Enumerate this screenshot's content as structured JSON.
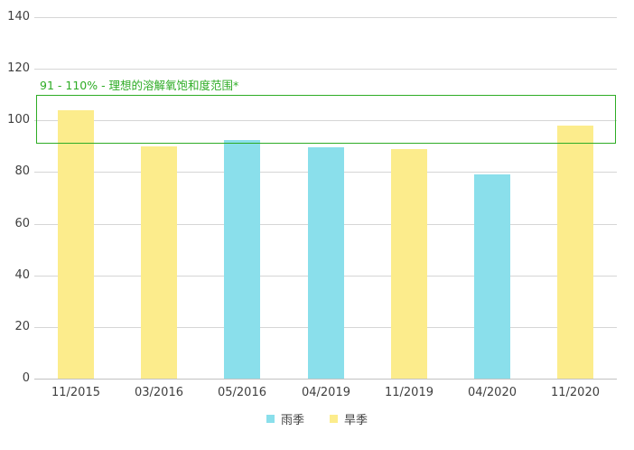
{
  "chart_data": {
    "type": "bar",
    "title": "",
    "xlabel": "",
    "ylabel": "",
    "ylim": [
      0,
      140
    ],
    "ytick_step": 20,
    "ytick_labels": [
      "0",
      "20",
      "40",
      "60",
      "80",
      "100",
      "120",
      "140"
    ],
    "grid": true,
    "categories": [
      "11/2015",
      "03/2016",
      "05/2016",
      "04/2019",
      "11/2019",
      "04/2020",
      "11/2020"
    ],
    "bars": [
      {
        "category": "11/2015",
        "value": 104,
        "series": "旱季"
      },
      {
        "category": "03/2016",
        "value": 90,
        "series": "旱季"
      },
      {
        "category": "05/2016",
        "value": 92.5,
        "series": "雨季"
      },
      {
        "category": "04/2019",
        "value": 89.5,
        "series": "雨季"
      },
      {
        "category": "11/2019",
        "value": 89,
        "series": "旱季"
      },
      {
        "category": "04/2020",
        "value": 79,
        "series": "雨季"
      },
      {
        "category": "11/2020",
        "value": 98,
        "series": "旱季"
      }
    ],
    "series": [
      {
        "name": "雨季",
        "color": "#8ADFEB"
      },
      {
        "name": "旱季",
        "color": "#FCEC8C"
      }
    ],
    "legend_position": "bottom-center",
    "annotation": {
      "text": "91 - 110% - 理想的溶解氧饱和度范围*",
      "range_low": 91,
      "range_high": 110,
      "color": "#2EAC25"
    }
  },
  "colors": {
    "gridline": "#d6d6d6",
    "axis_text": "#3f3f3f",
    "background": "#ffffff",
    "rainy_season_bar": "#8ADFEB",
    "dry_season_bar": "#FCEC8C",
    "annotation_green": "#2EAC25"
  }
}
